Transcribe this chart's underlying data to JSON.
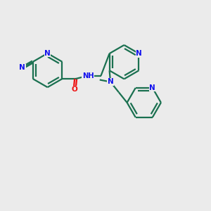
{
  "bg_color": "#ebebeb",
  "N_color": "#1010ee",
  "O_color": "#ee1010",
  "bond_color": "#1a7050",
  "lw": 1.6,
  "figsize": [
    3.0,
    3.0
  ],
  "dpi": 100,
  "xlim": [
    0,
    10
  ],
  "ylim": [
    0,
    10
  ]
}
